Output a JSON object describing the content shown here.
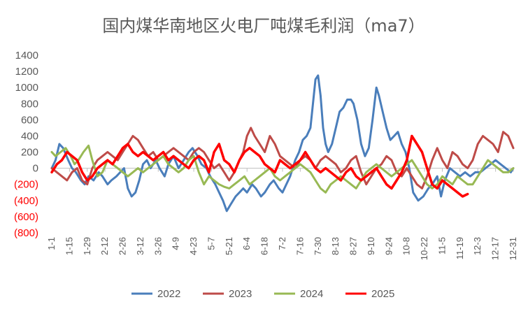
{
  "chart_data": {
    "type": "line",
    "title": "国内煤华南地区火电厂吨煤毛利润（ma7）",
    "xlabel": "",
    "ylabel": "",
    "ylim": [
      -800,
      1400
    ],
    "yticks": [
      1400,
      1200,
      1000,
      800,
      600,
      400,
      200,
      0,
      -200,
      -400,
      -600,
      -800
    ],
    "ytick_labels": [
      "1400",
      "1200",
      "1000",
      "800",
      "600",
      "400",
      "200",
      "0",
      "(200)",
      "(400)",
      "(600)",
      "(800)"
    ],
    "negative_label_color": "#FF0000",
    "x_axis_type": "date",
    "x_date_range": [
      "1-1",
      "12-31"
    ],
    "x_tick_labels": [
      "1-1",
      "1-15",
      "1-29",
      "2-12",
      "2-26",
      "3-12",
      "3-26",
      "4-9",
      "4-23",
      "5-7",
      "5-21",
      "6-4",
      "6-18",
      "7-2",
      "7-16",
      "7-30",
      "8-13",
      "8-27",
      "9-10",
      "9-24",
      "10-8",
      "10-22",
      "11-5",
      "11-19",
      "12-3",
      "12-17",
      "12-31"
    ],
    "grid": false,
    "legend": "bottom",
    "series": [
      {
        "name": "2022",
        "color": "#4A7EBB",
        "width": 3,
        "x": [
          "1-1",
          "1-4",
          "1-7",
          "1-10",
          "1-14",
          "1-17",
          "1-20",
          "1-24",
          "1-27",
          "1-30",
          "2-3",
          "2-7",
          "2-10",
          "2-14",
          "2-17",
          "2-21",
          "2-24",
          "2-27",
          "3-2",
          "3-5",
          "3-8",
          "3-11",
          "3-14",
          "3-17",
          "3-20",
          "3-24",
          "3-27",
          "3-31",
          "4-3",
          "4-7",
          "4-11",
          "4-15",
          "4-19",
          "4-22",
          "4-26",
          "4-29",
          "5-3",
          "5-6",
          "5-10",
          "5-13",
          "5-16",
          "5-19",
          "5-22",
          "5-26",
          "5-29",
          "6-1",
          "6-4",
          "6-8",
          "6-11",
          "6-15",
          "6-18",
          "6-22",
          "6-25",
          "6-29",
          "7-2",
          "7-5",
          "7-8",
          "7-12",
          "7-15",
          "7-18",
          "7-21",
          "7-24",
          "7-26",
          "7-28",
          "7-30",
          "8-1",
          "8-3",
          "8-5",
          "8-7",
          "8-10",
          "8-13",
          "8-16",
          "8-19",
          "8-22",
          "8-25",
          "8-27",
          "8-30",
          "9-2",
          "9-5",
          "9-8",
          "9-11",
          "9-14",
          "9-16",
          "9-19",
          "9-22",
          "9-25",
          "9-28",
          "10-1",
          "10-4",
          "10-7",
          "10-10",
          "10-13",
          "10-17",
          "10-21",
          "10-25",
          "10-28",
          "11-1",
          "11-4",
          "11-7",
          "11-11",
          "11-15",
          "11-19",
          "11-23",
          "11-27",
          "12-1",
          "12-5",
          "12-9",
          "12-13",
          "12-17",
          "12-21",
          "12-25",
          "12-29",
          "12-31"
        ],
        "values": [
          0,
          100,
          300,
          250,
          100,
          0,
          -50,
          -150,
          -200,
          -100,
          -150,
          -50,
          -100,
          -200,
          -150,
          -100,
          -50,
          0,
          -250,
          -350,
          -300,
          -150,
          50,
          100,
          0,
          100,
          0,
          -100,
          50,
          150,
          0,
          100,
          200,
          250,
          150,
          50,
          0,
          -100,
          -200,
          -300,
          -400,
          -530,
          -450,
          -350,
          -300,
          -250,
          -300,
          -200,
          -250,
          -350,
          -300,
          -200,
          -150,
          -250,
          -300,
          -200,
          -100,
          100,
          200,
          350,
          400,
          500,
          800,
          1100,
          1150,
          900,
          500,
          300,
          200,
          300,
          500,
          700,
          750,
          850,
          850,
          800,
          600,
          300,
          150,
          250,
          600,
          1000,
          900,
          700,
          500,
          350,
          400,
          450,
          300,
          200,
          0,
          -300,
          -400,
          -350,
          -250,
          -200,
          -100,
          -350,
          -150,
          0,
          -50,
          -100,
          -50,
          -100,
          -50,
          -50,
          0,
          50,
          100,
          50,
          0,
          -50,
          0
        ]
      },
      {
        "name": "2023",
        "color": "#BE4B48",
        "width": 3,
        "x": [
          "1-1",
          "1-5",
          "1-9",
          "1-13",
          "1-17",
          "1-21",
          "1-25",
          "1-29",
          "2-2",
          "2-6",
          "2-10",
          "2-14",
          "2-18",
          "2-22",
          "2-26",
          "3-2",
          "3-6",
          "3-10",
          "3-14",
          "3-18",
          "3-22",
          "3-26",
          "3-30",
          "4-3",
          "4-7",
          "4-11",
          "4-15",
          "4-19",
          "4-23",
          "4-27",
          "5-1",
          "5-5",
          "5-9",
          "5-13",
          "5-17",
          "5-21",
          "5-25",
          "5-29",
          "6-1",
          "6-4",
          "6-7",
          "6-10",
          "6-14",
          "6-18",
          "6-22",
          "6-26",
          "6-30",
          "7-4",
          "7-8",
          "7-12",
          "7-16",
          "7-20",
          "7-24",
          "7-28",
          "8-1",
          "8-5",
          "8-9",
          "8-13",
          "8-17",
          "8-21",
          "8-25",
          "8-29",
          "9-2",
          "9-6",
          "9-10",
          "9-14",
          "9-18",
          "9-22",
          "9-26",
          "9-30",
          "10-4",
          "10-8",
          "10-12",
          "10-16",
          "10-20",
          "10-24",
          "10-28",
          "11-1",
          "11-5",
          "11-9",
          "11-13",
          "11-17",
          "11-21",
          "11-25",
          "11-29",
          "12-3",
          "12-7",
          "12-11",
          "12-15",
          "12-19",
          "12-23",
          "12-27",
          "12-31"
        ],
        "values": [
          0,
          -50,
          -100,
          -150,
          -50,
          0,
          -150,
          -200,
          0,
          100,
          150,
          200,
          150,
          100,
          200,
          300,
          400,
          350,
          250,
          150,
          200,
          100,
          150,
          200,
          250,
          200,
          150,
          100,
          200,
          250,
          200,
          100,
          0,
          50,
          -50,
          -150,
          -50,
          100,
          200,
          400,
          500,
          400,
          300,
          200,
          400,
          300,
          150,
          100,
          50,
          0,
          100,
          150,
          100,
          0,
          100,
          150,
          100,
          50,
          -50,
          0,
          100,
          150,
          -50,
          -200,
          -100,
          0,
          50,
          150,
          100,
          -50,
          -100,
          0,
          -100,
          -200,
          -250,
          -100,
          100,
          250,
          100,
          0,
          200,
          150,
          50,
          0,
          100,
          300,
          400,
          350,
          300,
          200,
          450,
          400,
          250
        ]
      },
      {
        "name": "2024",
        "color": "#98B954",
        "width": 3,
        "x": [
          "1-1",
          "1-4",
          "1-8",
          "1-12",
          "1-16",
          "1-19",
          "1-22",
          "1-26",
          "1-30",
          "2-2",
          "2-6",
          "2-10",
          "2-14",
          "2-18",
          "2-22",
          "2-26",
          "3-2",
          "3-6",
          "3-10",
          "3-14",
          "3-18",
          "3-22",
          "3-26",
          "3-30",
          "4-3",
          "4-7",
          "4-11",
          "4-15",
          "4-19",
          "4-23",
          "4-27",
          "5-1",
          "5-5",
          "5-9",
          "5-13",
          "5-17",
          "5-21",
          "5-25",
          "5-29",
          "6-2",
          "6-6",
          "6-10",
          "6-14",
          "6-18",
          "6-22",
          "6-26",
          "6-30",
          "7-4",
          "7-8",
          "7-12",
          "7-16",
          "7-20",
          "7-24",
          "7-28",
          "8-1",
          "8-5",
          "8-9",
          "8-13",
          "8-17",
          "8-21",
          "8-25",
          "8-29",
          "9-2",
          "9-6",
          "9-10",
          "9-14",
          "9-18",
          "9-22",
          "9-26",
          "9-30",
          "10-4",
          "10-8",
          "10-12",
          "10-16",
          "10-20",
          "10-24",
          "10-28",
          "11-1",
          "11-5",
          "11-9",
          "11-13",
          "11-17",
          "11-21",
          "11-25",
          "11-29",
          "12-3",
          "12-7",
          "12-11",
          "12-15",
          "12-19",
          "12-23",
          "12-27",
          "12-31"
        ],
        "values": [
          200,
          150,
          200,
          250,
          150,
          50,
          100,
          200,
          280,
          100,
          -100,
          -50,
          100,
          50,
          0,
          -50,
          -100,
          -50,
          0,
          -50,
          0,
          50,
          100,
          150,
          50,
          0,
          -50,
          0,
          100,
          150,
          -50,
          -200,
          -100,
          -150,
          -200,
          -230,
          -250,
          -200,
          -150,
          -100,
          -200,
          -150,
          -100,
          -50,
          0,
          -100,
          -150,
          -100,
          -50,
          0,
          50,
          0,
          -50,
          -150,
          -250,
          -300,
          -200,
          -150,
          -100,
          -150,
          -200,
          -250,
          -150,
          -50,
          0,
          50,
          0,
          -50,
          -100,
          -50,
          0,
          50,
          100,
          0,
          -100,
          -200,
          -250,
          -200,
          -100,
          -150,
          -200,
          -100,
          -150,
          -200,
          -200,
          -100,
          0,
          100,
          50,
          0,
          -50,
          -50,
          0
        ]
      },
      {
        "name": "2025",
        "color": "#FF0000",
        "width": 3.5,
        "x": [
          "1-1",
          "1-5",
          "1-9",
          "1-13",
          "1-17",
          "1-21",
          "1-25",
          "1-29",
          "2-2",
          "2-6",
          "2-10",
          "2-14",
          "2-18",
          "2-22",
          "2-26",
          "3-2",
          "3-6",
          "3-10",
          "3-14",
          "3-18",
          "3-22",
          "3-26",
          "3-30",
          "4-3",
          "4-7",
          "4-11",
          "4-15",
          "4-19",
          "4-23",
          "4-27",
          "5-1",
          "5-5",
          "5-9",
          "5-13",
          "5-17",
          "5-21",
          "5-25",
          "5-29",
          "6-2",
          "6-6",
          "6-10",
          "6-14",
          "6-18",
          "6-22",
          "6-26",
          "6-30",
          "7-4",
          "7-8",
          "7-12",
          "7-16",
          "7-20",
          "7-24",
          "7-28",
          "8-1",
          "8-5",
          "8-9",
          "8-13",
          "8-17",
          "8-21",
          "8-25",
          "8-29",
          "9-2",
          "9-6",
          "9-10",
          "9-14",
          "9-18",
          "9-22",
          "9-26",
          "9-30",
          "10-4",
          "10-8",
          "10-12",
          "10-16",
          "10-20",
          "10-24",
          "10-28",
          "11-1",
          "11-5",
          "11-9",
          "11-13",
          "11-17",
          "11-21",
          "11-25"
        ],
        "values": [
          -50,
          50,
          100,
          200,
          150,
          100,
          -50,
          -150,
          -100,
          0,
          50,
          100,
          50,
          150,
          250,
          300,
          200,
          150,
          200,
          150,
          100,
          150,
          200,
          100,
          150,
          100,
          50,
          0,
          100,
          150,
          100,
          -50,
          200,
          300,
          100,
          50,
          -50,
          100,
          200,
          250,
          200,
          150,
          50,
          0,
          -50,
          100,
          50,
          0,
          50,
          100,
          200,
          100,
          0,
          -50,
          0,
          -50,
          -100,
          -150,
          -50,
          0,
          -100,
          -150,
          -100,
          -50,
          0,
          -100,
          -200,
          -250,
          -150,
          -50,
          100,
          400,
          300,
          200,
          0,
          -200,
          -250,
          -150,
          -200,
          -250,
          -300,
          -350,
          -320
        ]
      }
    ]
  }
}
